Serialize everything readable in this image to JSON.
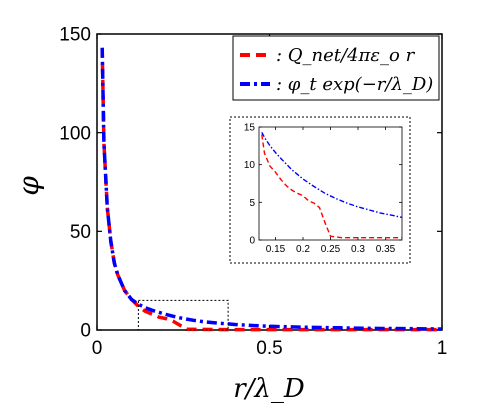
{
  "chart_data": [
    {
      "type": "line",
      "xlabel": "r/λ_D",
      "ylabel": "φ",
      "xlim": [
        0,
        1
      ],
      "ylim": [
        0,
        150
      ],
      "xticks": [
        0,
        0.5,
        1
      ],
      "xtick_labels": [
        "0",
        "0.5",
        "1"
      ],
      "yticks": [
        0,
        50,
        100,
        150
      ],
      "ytick_labels": [
        "0",
        "50",
        "100",
        "150"
      ],
      "grid": false,
      "legend_position": "top-right",
      "series": [
        {
          "name": ": Q_net/4πε_o r",
          "color": "#ff0000",
          "style": "dashed",
          "x": [
            0.015,
            0.02,
            0.03,
            0.04,
            0.05,
            0.06,
            0.08,
            0.1,
            0.12,
            0.14,
            0.16,
            0.18,
            0.2,
            0.22,
            0.24,
            0.26,
            0.3,
            0.4,
            0.5,
            0.6,
            0.7,
            0.8,
            0.9,
            1.0
          ],
          "y": [
            143,
            95,
            62,
            45,
            34,
            28,
            20,
            15.5,
            12,
            9.5,
            8,
            6.5,
            5.8,
            4.5,
            2.5,
            0.4,
            0.3,
            0.2,
            0.2,
            0.2,
            0.2,
            0.2,
            0.2,
            0.2
          ]
        },
        {
          "name": ": φ_t exp(−r/λ_D)",
          "color": "#0000ff",
          "style": "dashdot",
          "x": [
            0.015,
            0.02,
            0.03,
            0.04,
            0.05,
            0.06,
            0.08,
            0.1,
            0.12,
            0.14,
            0.16,
            0.18,
            0.2,
            0.22,
            0.24,
            0.26,
            0.28,
            0.3,
            0.32,
            0.35,
            0.38,
            0.4,
            0.45,
            0.5,
            0.6,
            0.7,
            0.8,
            0.9,
            1.0
          ],
          "y": [
            143,
            95,
            62,
            45,
            34,
            28,
            20,
            15.5,
            13,
            11.3,
            10,
            8.9,
            7.9,
            7,
            6.2,
            5.5,
            4.9,
            4.4,
            4,
            3.5,
            3.1,
            2.8,
            2.3,
            1.9,
            1.4,
            1.1,
            0.8,
            0.7,
            0.5
          ]
        }
      ]
    },
    {
      "type": "line",
      "inset": true,
      "xlim": [
        0.12,
        0.38
      ],
      "ylim": [
        0,
        15
      ],
      "xticks": [
        0.15,
        0.2,
        0.25,
        0.3,
        0.35
      ],
      "xtick_labels": [
        "0.15",
        "0.2",
        "0.25",
        "0.3",
        "0.35"
      ],
      "yticks": [
        0,
        5,
        10,
        15
      ],
      "ytick_labels": [
        "0",
        "5",
        "10",
        "15"
      ],
      "series": [
        {
          "name": ": Q_net/4πε_o r",
          "color": "#ff0000",
          "style": "dashed",
          "x": [
            0.125,
            0.13,
            0.14,
            0.15,
            0.16,
            0.17,
            0.18,
            0.19,
            0.2,
            0.21,
            0.22,
            0.23,
            0.24,
            0.25,
            0.27,
            0.3,
            0.33,
            0.36,
            0.38
          ],
          "y": [
            14,
            11.5,
            9.8,
            9,
            8,
            7.2,
            6.6,
            6.2,
            5.9,
            5.2,
            4.9,
            4.3,
            2.3,
            0.5,
            0.3,
            0.3,
            0.3,
            0.3,
            0.3
          ]
        },
        {
          "name": ": φ_t exp(−r/λ_D)",
          "color": "#0000ff",
          "style": "dashdot",
          "x": [
            0.125,
            0.13,
            0.14,
            0.15,
            0.16,
            0.18,
            0.2,
            0.22,
            0.24,
            0.26,
            0.28,
            0.3,
            0.32,
            0.34,
            0.36,
            0.38
          ],
          "y": [
            14.3,
            13.6,
            12.5,
            11.6,
            10.8,
            9.3,
            8.1,
            7.1,
            6.2,
            5.5,
            4.9,
            4.4,
            4.0,
            3.6,
            3.3,
            3.0
          ]
        }
      ]
    }
  ]
}
